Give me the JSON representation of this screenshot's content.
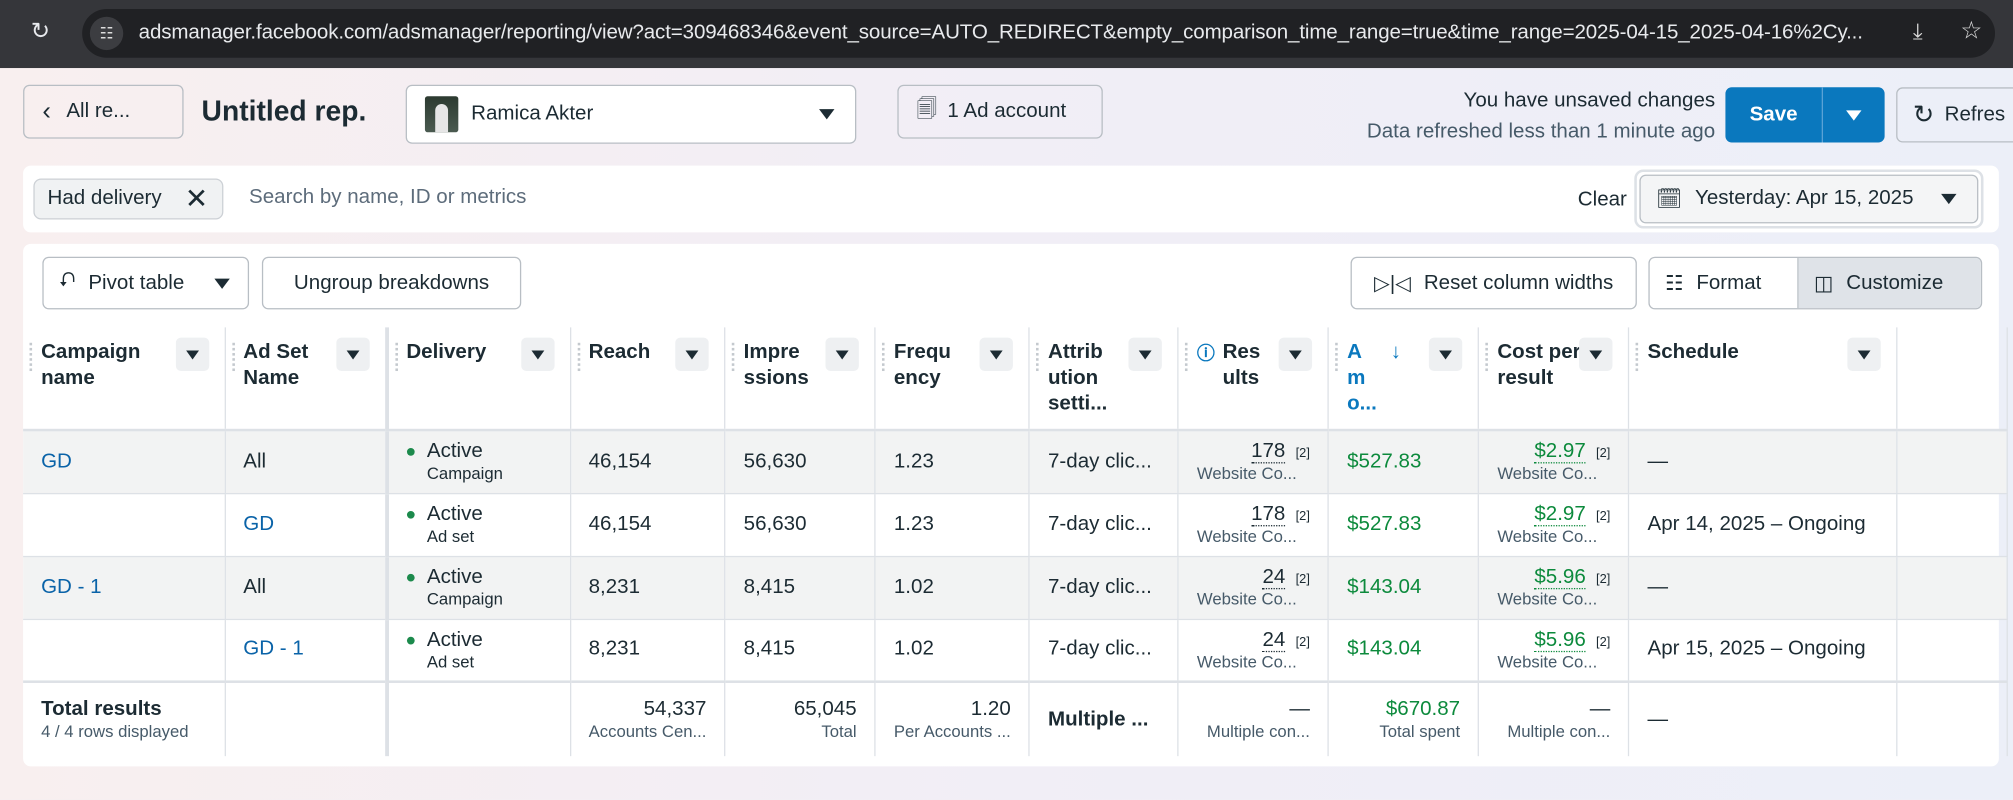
{
  "browser": {
    "url": "adsmanager.facebook.com/adsmanager/reporting/view?act=309468346&event_source=AUTO_REDIRECT&empty_comparison_time_range=true&time_range=2025-04-15_2025-04-16%2Cy..."
  },
  "header": {
    "back_label": "All re...",
    "title": "Untitled rep.",
    "account_name": "Ramica Akter",
    "ad_account_label": "1 Ad account",
    "unsaved": "You have unsaved changes",
    "refreshed": "Data refreshed less than 1 minute ago",
    "save_label": "Save",
    "refresh_label": "Refres"
  },
  "filters": {
    "chip": "Had delivery",
    "search_placeholder": "Search by name, ID or metrics",
    "clear": "Clear",
    "date": "Yesterday: Apr 15, 2025"
  },
  "toolbar": {
    "pivot": "Pivot table",
    "ungroup": "Ungroup breakdowns",
    "reset": "Reset column widths",
    "format": "Format",
    "customize": "Customize"
  },
  "columns": [
    "Campaign name",
    "Ad Set Name",
    "Delivery",
    "Reach",
    "Impre ssions",
    "Frequ ency",
    "Attrib ution setti...",
    "Res ults",
    "A m o...",
    "Cost per result",
    "Schedule"
  ],
  "rows": [
    {
      "campaign": "GD",
      "adset": "All",
      "delivery": "Active",
      "level": "Campaign",
      "reach": "46,154",
      "impressions": "56,630",
      "frequency": "1.23",
      "attribution": "7-day clic...",
      "results": "178",
      "ref": "[2]",
      "result_type": "Website Co...",
      "amount": "$527.83",
      "cpr": "$2.97",
      "cpr_type": "Website Co...",
      "schedule": "—"
    },
    {
      "campaign": "",
      "adset": "GD",
      "delivery": "Active",
      "level": "Ad set",
      "reach": "46,154",
      "impressions": "56,630",
      "frequency": "1.23",
      "attribution": "7-day clic...",
      "results": "178",
      "ref": "[2]",
      "result_type": "Website Co...",
      "amount": "$527.83",
      "cpr": "$2.97",
      "cpr_type": "Website Co...",
      "schedule": "Apr 14, 2025 – Ongoing"
    },
    {
      "campaign": "GD - 1",
      "adset": "All",
      "delivery": "Active",
      "level": "Campaign",
      "reach": "8,231",
      "impressions": "8,415",
      "frequency": "1.02",
      "attribution": "7-day clic...",
      "results": "24",
      "ref": "[2]",
      "result_type": "Website Co...",
      "amount": "$143.04",
      "cpr": "$5.96",
      "cpr_type": "Website Co...",
      "schedule": "—"
    },
    {
      "campaign": "",
      "adset": "GD - 1",
      "delivery": "Active",
      "level": "Ad set",
      "reach": "8,231",
      "impressions": "8,415",
      "frequency": "1.02",
      "attribution": "7-day clic...",
      "results": "24",
      "ref": "[2]",
      "result_type": "Website Co...",
      "amount": "$143.04",
      "cpr": "$5.96",
      "cpr_type": "Website Co...",
      "schedule": "Apr 15, 2025 – Ongoing"
    }
  ],
  "totals": {
    "label": "Total results",
    "rows_displayed": "4 / 4 rows displayed",
    "reach": "54,337",
    "reach_sub": "Accounts Cen...",
    "impressions": "65,045",
    "impressions_sub": "Total",
    "frequency": "1.20",
    "frequency_sub": "Per Accounts ...",
    "attribution": "Multiple ...",
    "results": "—",
    "results_sub": "Multiple con...",
    "amount": "$670.87",
    "amount_sub": "Total spent",
    "cpr": "—",
    "cpr_sub": "Multiple con...",
    "schedule": "—"
  },
  "colors": {
    "accent": "#0a78be",
    "money": "#0c8a3c",
    "link": "#0a63a8"
  }
}
